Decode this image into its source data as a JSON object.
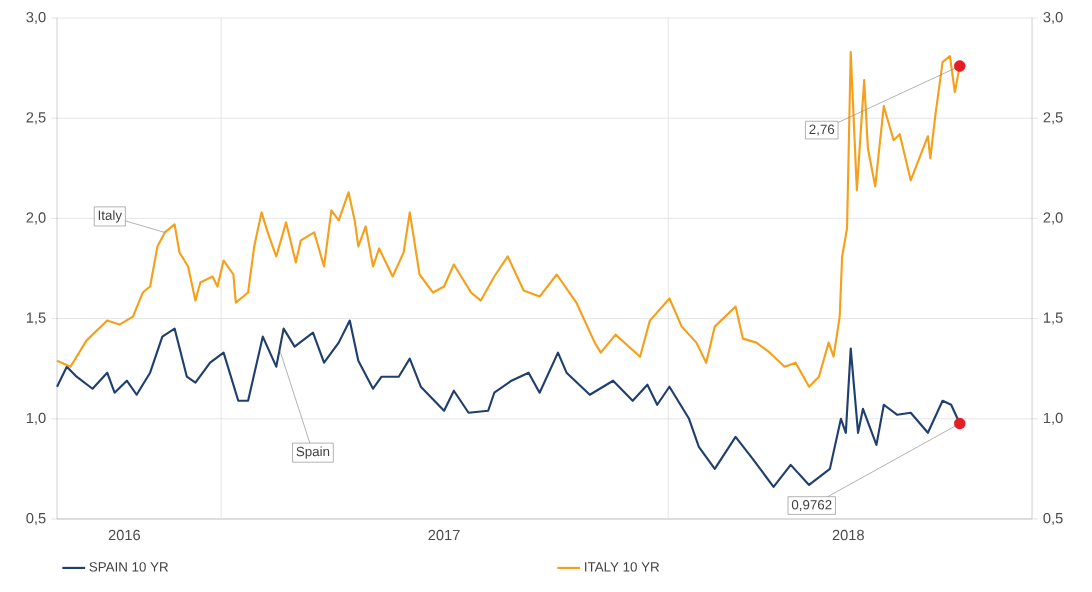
{
  "chart_data": {
    "type": "line",
    "xlim": [
      "2016-08-20",
      "2018-10-25"
    ],
    "xticks": [
      {
        "value": "2016-10-14",
        "label": "2016"
      },
      {
        "value": "2017-01-01",
        "label": null
      },
      {
        "value": "2017-07-02",
        "label": "2017"
      },
      {
        "value": "2018-01-01",
        "label": null
      },
      {
        "value": "2018-05-28",
        "label": "2018"
      }
    ],
    "ylim": [
      0.5,
      3.0
    ],
    "yticks": [
      {
        "value": 0.5,
        "label": "0,5"
      },
      {
        "value": 1.0,
        "label": "1,0"
      },
      {
        "value": 1.5,
        "label": "1,5"
      },
      {
        "value": 2.0,
        "label": "2,0"
      },
      {
        "value": 2.5,
        "label": "2,5"
      },
      {
        "value": 3.0,
        "label": "3,0"
      }
    ],
    "y2lim": [
      0.5,
      3.0
    ],
    "y2ticks": [
      {
        "value": 0.5,
        "label": "0,5"
      },
      {
        "value": 1.0,
        "label": "1,0"
      },
      {
        "value": 1.5,
        "label": "1,5"
      },
      {
        "value": 2.0,
        "label": "2,0"
      },
      {
        "value": 2.5,
        "label": "2,5"
      },
      {
        "value": 3.0,
        "label": "3,0"
      }
    ],
    "grid": true,
    "legend": "bottom",
    "series": [
      {
        "name": "SPAIN 10 YR",
        "color": "#1f3f6e",
        "x": [
          "2016-08-20",
          "2016-08-28",
          "2016-09-05",
          "2016-09-18",
          "2016-09-30",
          "2016-10-06",
          "2016-10-16",
          "2016-10-24",
          "2016-11-04",
          "2016-11-14",
          "2016-11-24",
          "2016-12-04",
          "2016-12-11",
          "2016-12-23",
          "2017-01-03",
          "2017-01-15",
          "2017-01-23",
          "2017-02-04",
          "2017-02-15",
          "2017-02-21",
          "2017-03-02",
          "2017-03-17",
          "2017-03-26",
          "2017-04-07",
          "2017-04-16",
          "2017-04-23",
          "2017-05-05",
          "2017-05-12",
          "2017-05-26",
          "2017-06-04",
          "2017-06-13",
          "2017-07-02",
          "2017-07-10",
          "2017-07-22",
          "2017-08-07",
          "2017-08-12",
          "2017-08-26",
          "2017-09-09",
          "2017-09-18",
          "2017-10-03",
          "2017-10-10",
          "2017-10-29",
          "2017-11-17",
          "2017-12-03",
          "2017-12-15",
          "2017-12-23",
          "2018-01-02",
          "2018-01-18",
          "2018-01-26",
          "2018-02-08",
          "2018-02-25",
          "2018-03-11",
          "2018-03-28",
          "2018-04-11",
          "2018-04-26",
          "2018-05-13",
          "2018-05-22",
          "2018-05-26",
          "2018-05-30",
          "2018-06-05",
          "2018-06-09",
          "2018-06-20",
          "2018-06-26",
          "2018-07-07",
          "2018-07-18",
          "2018-08-01",
          "2018-08-13",
          "2018-08-20",
          "2018-08-27"
        ],
        "values": [
          1.16,
          1.26,
          1.21,
          1.15,
          1.23,
          1.13,
          1.19,
          1.12,
          1.23,
          1.41,
          1.45,
          1.21,
          1.18,
          1.28,
          1.33,
          1.09,
          1.09,
          1.41,
          1.26,
          1.45,
          1.36,
          1.43,
          1.28,
          1.38,
          1.49,
          1.29,
          1.15,
          1.21,
          1.21,
          1.3,
          1.16,
          1.04,
          1.14,
          1.03,
          1.04,
          1.13,
          1.19,
          1.23,
          1.13,
          1.33,
          1.23,
          1.12,
          1.19,
          1.09,
          1.17,
          1.07,
          1.16,
          1.0,
          0.86,
          0.75,
          0.91,
          0.8,
          0.66,
          0.77,
          0.67,
          0.75,
          1.0,
          0.93,
          1.35,
          0.93,
          1.05,
          0.87,
          1.07,
          1.02,
          1.03,
          0.93,
          1.09,
          1.07,
          0.9762
        ]
      },
      {
        "name": "ITALY 10 YR",
        "color": "#f5a01a",
        "x": [
          "2016-08-20",
          "2016-08-31",
          "2016-09-13",
          "2016-09-30",
          "2016-10-10",
          "2016-10-21",
          "2016-10-29",
          "2016-11-04",
          "2016-11-10",
          "2016-11-16",
          "2016-11-24",
          "2016-11-28",
          "2016-12-05",
          "2016-12-11",
          "2016-12-15",
          "2016-12-25",
          "2016-12-29",
          "2017-01-03",
          "2017-01-11",
          "2017-01-13",
          "2017-01-23",
          "2017-01-28",
          "2017-02-03",
          "2017-02-08",
          "2017-02-15",
          "2017-02-23",
          "2017-03-03",
          "2017-03-07",
          "2017-03-18",
          "2017-03-26",
          "2017-04-01",
          "2017-04-07",
          "2017-04-15",
          "2017-04-20",
          "2017-04-23",
          "2017-04-29",
          "2017-05-05",
          "2017-05-10",
          "2017-05-21",
          "2017-05-30",
          "2017-06-04",
          "2017-06-12",
          "2017-06-23",
          "2017-07-02",
          "2017-07-10",
          "2017-07-24",
          "2017-08-01",
          "2017-08-12",
          "2017-08-23",
          "2017-09-05",
          "2017-09-18",
          "2017-10-02",
          "2017-10-18",
          "2017-11-02",
          "2017-11-07",
          "2017-11-19",
          "2017-12-09",
          "2017-12-17",
          "2018-01-02",
          "2018-01-12",
          "2018-01-24",
          "2018-02-01",
          "2018-02-08",
          "2018-02-25",
          "2018-03-03",
          "2018-03-14",
          "2018-03-25",
          "2018-04-06",
          "2018-04-15",
          "2018-04-26",
          "2018-05-04",
          "2018-05-12",
          "2018-05-16",
          "2018-05-21",
          "2018-05-23",
          "2018-05-27",
          "2018-05-30",
          "2018-06-04",
          "2018-06-10",
          "2018-06-13",
          "2018-06-19",
          "2018-06-26",
          "2018-07-04",
          "2018-07-09",
          "2018-07-18",
          "2018-08-01",
          "2018-08-03",
          "2018-08-07",
          "2018-08-13",
          "2018-08-19",
          "2018-08-23",
          "2018-08-27"
        ],
        "values": [
          1.29,
          1.26,
          1.39,
          1.49,
          1.47,
          1.51,
          1.63,
          1.66,
          1.86,
          1.93,
          1.97,
          1.83,
          1.76,
          1.59,
          1.68,
          1.71,
          1.66,
          1.79,
          1.72,
          1.58,
          1.63,
          1.86,
          2.03,
          1.93,
          1.81,
          1.98,
          1.78,
          1.89,
          1.93,
          1.76,
          2.04,
          1.99,
          2.13,
          1.99,
          1.86,
          1.96,
          1.76,
          1.85,
          1.71,
          1.83,
          2.03,
          1.72,
          1.63,
          1.66,
          1.77,
          1.63,
          1.59,
          1.71,
          1.81,
          1.64,
          1.61,
          1.72,
          1.58,
          1.38,
          1.33,
          1.42,
          1.31,
          1.49,
          1.6,
          1.46,
          1.38,
          1.28,
          1.46,
          1.56,
          1.4,
          1.38,
          1.33,
          1.26,
          1.28,
          1.16,
          1.21,
          1.38,
          1.31,
          1.51,
          1.81,
          1.95,
          2.83,
          2.14,
          2.69,
          2.35,
          2.16,
          2.56,
          2.39,
          2.42,
          2.19,
          2.41,
          2.3,
          2.51,
          2.78,
          2.81,
          2.63,
          2.76
        ]
      },
      {
        "type": "scatter",
        "color": "#e31e24",
        "marker": "circle",
        "x": [
          "2018-08-27",
          "2018-08-27"
        ],
        "values": [
          2.76,
          0.9762
        ]
      }
    ],
    "annotations": [
      {
        "text": "Italy",
        "x": "2016-11-16",
        "y": 1.93
      },
      {
        "text": "Spain",
        "x": "2017-02-18",
        "y": 1.34
      },
      {
        "text": "2,76",
        "x": "2018-08-27",
        "y": 2.76
      },
      {
        "text": "0,9762",
        "x": "2018-08-27",
        "y": 0.9762
      }
    ]
  }
}
